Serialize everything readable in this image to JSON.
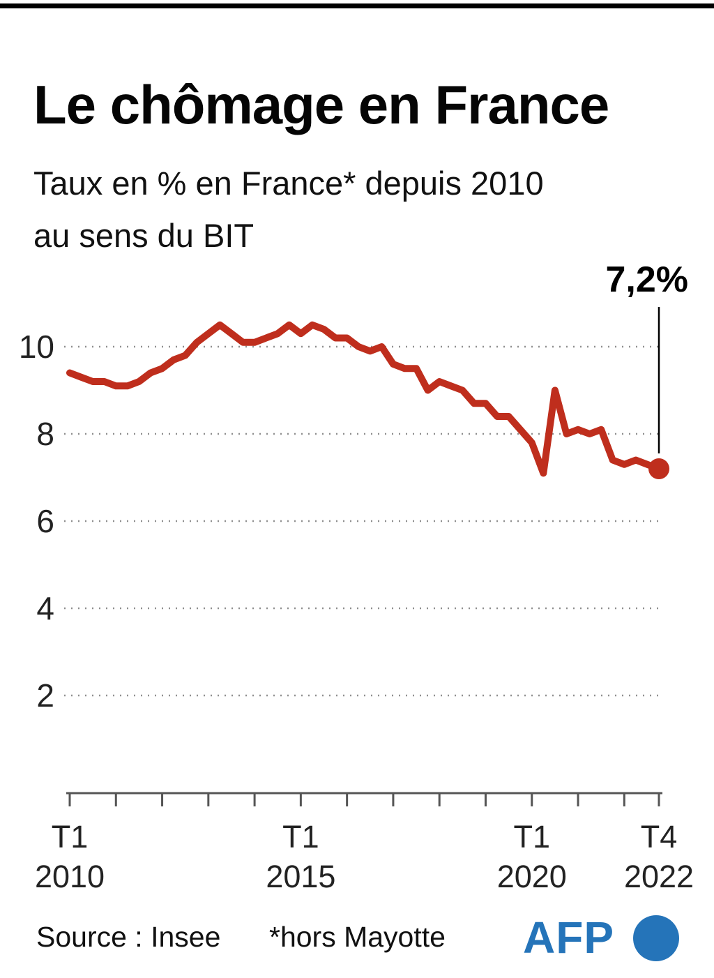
{
  "header": {
    "title": "Le chômage en France",
    "subtitle": "Taux en % en France* depuis 2010\nau sens du BIT"
  },
  "footer": {
    "source": "Source : Insee",
    "note": "*hors Mayotte",
    "logo_text": "AFP"
  },
  "colors": {
    "line_red": "#bf2e1d",
    "marker_red": "#bf2e1d",
    "afp_blue": "#2574b9",
    "grid_gray": "#8f8f8f",
    "text_black": "#111111"
  },
  "chart_data": {
    "type": "line",
    "title": "Le chômage en France",
    "subtitle": "Taux en % en France* depuis 2010 au sens du BIT",
    "xlabel": "",
    "ylabel": "Taux en %",
    "ylim": [
      0,
      11.5
    ],
    "grid": "horizontal-dotted",
    "yticks": [
      10,
      8,
      6,
      4,
      2
    ],
    "categories": [
      "T1 2010",
      "T2 2010",
      "T3 2010",
      "T4 2010",
      "T1 2011",
      "T2 2011",
      "T3 2011",
      "T4 2011",
      "T1 2012",
      "T2 2012",
      "T3 2012",
      "T4 2012",
      "T1 2013",
      "T2 2013",
      "T3 2013",
      "T4 2013",
      "T1 2014",
      "T2 2014",
      "T3 2014",
      "T4 2014",
      "T1 2015",
      "T2 2015",
      "T3 2015",
      "T4 2015",
      "T1 2016",
      "T2 2016",
      "T3 2016",
      "T4 2016",
      "T1 2017",
      "T2 2017",
      "T3 2017",
      "T4 2017",
      "T1 2018",
      "T2 2018",
      "T3 2018",
      "T4 2018",
      "T1 2019",
      "T2 2019",
      "T3 2019",
      "T4 2019",
      "T1 2020",
      "T2 2020",
      "T3 2020",
      "T4 2020",
      "T1 2021",
      "T2 2021",
      "T3 2021",
      "T4 2021",
      "T1 2022",
      "T2 2022",
      "T3 2022",
      "T4 2022"
    ],
    "values": [
      9.4,
      9.3,
      9.2,
      9.2,
      9.1,
      9.1,
      9.2,
      9.4,
      9.5,
      9.7,
      9.8,
      10.1,
      10.3,
      10.5,
      10.3,
      10.1,
      10.1,
      10.2,
      10.3,
      10.5,
      10.3,
      10.5,
      10.4,
      10.2,
      10.2,
      10.0,
      9.9,
      10.0,
      9.6,
      9.5,
      9.5,
      9.0,
      9.2,
      9.1,
      9.0,
      8.7,
      8.7,
      8.4,
      8.4,
      8.1,
      7.8,
      7.1,
      9.0,
      8.0,
      8.1,
      8.0,
      8.1,
      7.4,
      7.3,
      7.4,
      7.3,
      7.2
    ],
    "xtick_labels": [
      {
        "index": 0,
        "top": "T1",
        "bottom": "2010"
      },
      {
        "index": 20,
        "top": "T1",
        "bottom": "2015"
      },
      {
        "index": 40,
        "top": "T1",
        "bottom": "2020"
      },
      {
        "index": 51,
        "top": "T4",
        "bottom": "2022"
      }
    ],
    "annotation": {
      "label": "7,2%",
      "x": "T4 2022",
      "value": 7.2
    },
    "legend": "none"
  }
}
